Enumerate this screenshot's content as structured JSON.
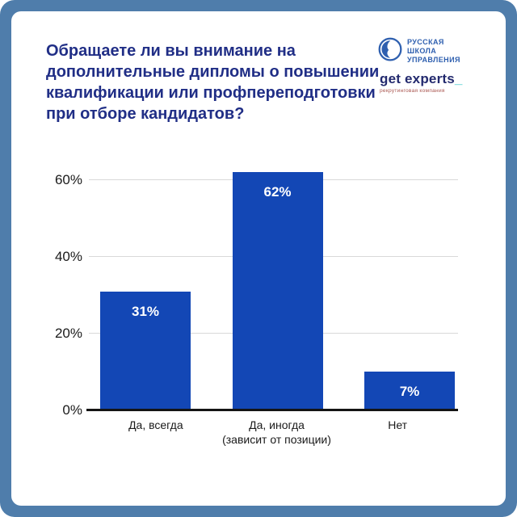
{
  "card": {
    "title": "Обращаете ли вы внимание на дополнительные дипломы о повышении квалификации или профпереподготовки при отборе кандидатов?",
    "title_lines": [
      "Обращаете ли вы внимание на",
      "дополнительные дипломы о повышении",
      "квалификации или профпереподготовки",
      "при отборе кандидатов?"
    ]
  },
  "logos": {
    "rsu": {
      "line1": "РУССКАЯ",
      "line2": "ШКОЛА",
      "line3": "УПРАВЛЕНИЯ"
    },
    "get_experts": {
      "wordmark": "get experts",
      "cursor": "_",
      "tagline": "рекрутинговая компания"
    }
  },
  "colors": {
    "frame_blue": "#4f7dab",
    "bar_blue": "#1347b5",
    "title_navy": "#202e86",
    "rsu_blue": "#2e5faf",
    "experts_navy": "#232a6e",
    "experts_teal": "#2ec5c9",
    "tagline_red": "#a8544e",
    "gridline_gray": "#d9d9d9",
    "axis_black": "#141414",
    "bar_label_white": "#ffffff"
  },
  "chart_data": {
    "type": "bar",
    "title": "",
    "xlabel": "",
    "ylabel": "",
    "categories": [
      "Да, всегда",
      "Да, иногда\n(зависит от позиции)",
      "Нет"
    ],
    "values": [
      31,
      62,
      7
    ],
    "value_labels": [
      "31%",
      "62%",
      "7%"
    ],
    "ylim": [
      0,
      65
    ],
    "yticks": [
      0,
      20,
      40,
      60
    ],
    "ytick_labels": [
      "0%",
      "20%",
      "40%",
      "60%"
    ],
    "grid": true,
    "legend_position": "none",
    "bar_color": "#1347b5"
  }
}
